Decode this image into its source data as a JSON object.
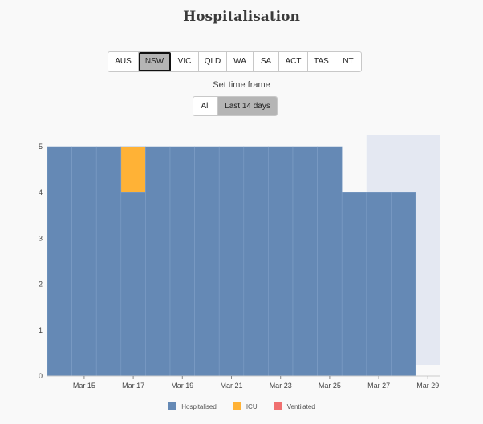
{
  "page": {
    "title": "Hospitalisation"
  },
  "regions": {
    "items": [
      "AUS",
      "NSW",
      "VIC",
      "QLD",
      "WA",
      "SA",
      "ACT",
      "TAS",
      "NT"
    ],
    "selected": "NSW"
  },
  "timeframe": {
    "label": "Set time frame",
    "options": [
      "All",
      "Last 14 days"
    ],
    "selected": "Last 14 days"
  },
  "colors": {
    "hospitalised": "#6589b5",
    "icu": "#ffb236",
    "ventilated": "#f07070",
    "projection_band": "#e4e8f2"
  },
  "chart_data": {
    "type": "bar",
    "stacked": true,
    "title": "",
    "xlabel": "",
    "ylabel": "",
    "ylim": [
      0,
      5
    ],
    "y_ticks": [
      "0",
      "1",
      "2",
      "3",
      "4",
      "5"
    ],
    "x_tick_labels": [
      "Mar 15",
      "Mar 17",
      "Mar 19",
      "Mar 21",
      "Mar 23",
      "Mar 25",
      "Mar 27",
      "Mar 29"
    ],
    "categories": [
      "Mar 14",
      "Mar 15",
      "Mar 16",
      "Mar 17",
      "Mar 18",
      "Mar 19",
      "Mar 20",
      "Mar 21",
      "Mar 22",
      "Mar 23",
      "Mar 24",
      "Mar 25",
      "Mar 26",
      "Mar 27",
      "Mar 28"
    ],
    "series": [
      {
        "name": "Hospitalised",
        "values": [
          5,
          5,
          5,
          4,
          5,
          5,
          5,
          5,
          5,
          5,
          5,
          5,
          4,
          4,
          4
        ]
      },
      {
        "name": "ICU",
        "values": [
          0,
          0,
          0,
          1,
          0,
          0,
          0,
          0,
          0,
          0,
          0,
          0,
          0,
          0,
          0
        ]
      },
      {
        "name": "Ventilated",
        "values": [
          0,
          0,
          0,
          0,
          0,
          0,
          0,
          0,
          0,
          0,
          0,
          0,
          0,
          0,
          0
        ]
      }
    ],
    "legend_position": "bottom"
  }
}
